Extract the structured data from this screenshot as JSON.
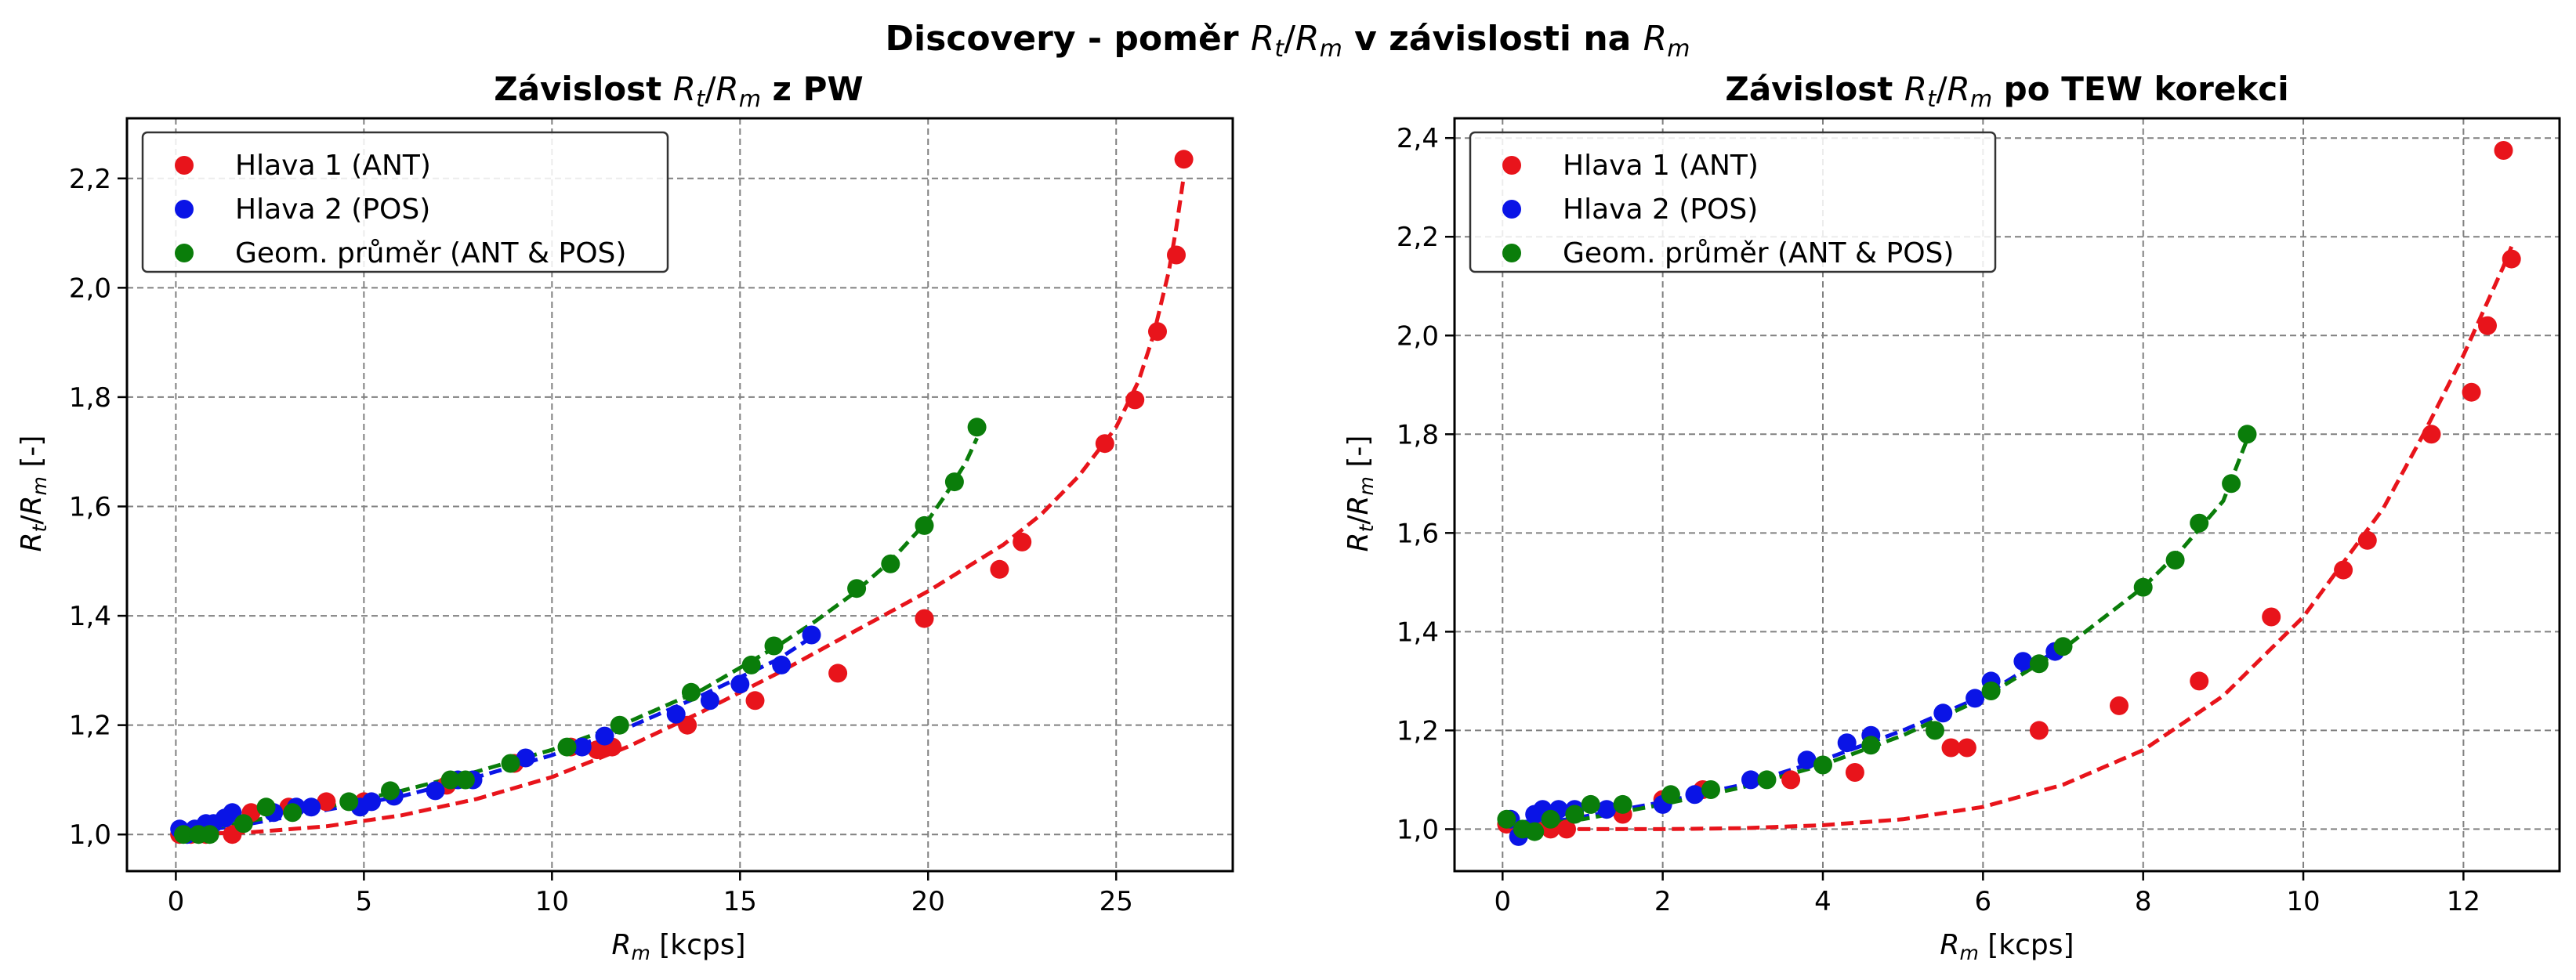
{
  "figure": {
    "suptitle_prefix": "Discovery - poměr ",
    "suptitle_middle": " v závislosti na "
  },
  "ratio_label": {
    "r": "R",
    "t": "t",
    "slash": "/",
    "m": "m"
  },
  "rm_label": {
    "r": "R",
    "m": "m"
  },
  "colors": {
    "red": "#e8141b",
    "blue": "#0a14e6",
    "green": "#0a7d0a"
  },
  "chart_data": [
    {
      "type": "scatter",
      "title_prefix": "Závislost ",
      "title_suffix": " z PW",
      "xlabel_unit": " [kcps]",
      "ylabel_unit": " [-]",
      "xlim": [
        -1.3,
        28.1
      ],
      "ylim": [
        0.933,
        2.31
      ],
      "xticks": [
        0,
        5,
        10,
        15,
        20,
        25
      ],
      "xtick_labels": [
        "0",
        "5",
        "10",
        "15",
        "20",
        "25"
      ],
      "yticks": [
        1.0,
        1.2,
        1.4,
        1.6,
        1.8,
        2.0,
        2.2
      ],
      "ytick_labels": [
        "1,0",
        "1,2",
        "1,4",
        "1,6",
        "1,8",
        "2,0",
        "2,2"
      ],
      "grid": true,
      "legend_position": "top-left",
      "series": [
        {
          "name": "Hlava 1 (ANT)",
          "color": "#e8141b",
          "points": [
            [
              0.1,
              1.0
            ],
            [
              0.4,
              1.0
            ],
            [
              0.8,
              1.0
            ],
            [
              1.5,
              1.0
            ],
            [
              2.0,
              1.04
            ],
            [
              3.0,
              1.05
            ],
            [
              4.0,
              1.06
            ],
            [
              5.0,
              1.06
            ],
            [
              7.2,
              1.09
            ],
            [
              9.0,
              1.13
            ],
            [
              10.5,
              1.16
            ],
            [
              11.2,
              1.155
            ],
            [
              11.6,
              1.16
            ],
            [
              13.6,
              1.2
            ],
            [
              15.4,
              1.245
            ],
            [
              17.6,
              1.295
            ],
            [
              19.9,
              1.395
            ],
            [
              21.9,
              1.485
            ],
            [
              22.5,
              1.535
            ],
            [
              24.7,
              1.715
            ],
            [
              25.5,
              1.795
            ],
            [
              26.1,
              1.92
            ],
            [
              26.6,
              2.06
            ],
            [
              26.8,
              2.235
            ]
          ],
          "fit": [
            [
              0,
              1.0
            ],
            [
              2,
              1.004
            ],
            [
              4,
              1.015
            ],
            [
              6,
              1.035
            ],
            [
              8,
              1.065
            ],
            [
              10,
              1.105
            ],
            [
              12,
              1.16
            ],
            [
              14,
              1.225
            ],
            [
              16,
              1.295
            ],
            [
              18,
              1.37
            ],
            [
              20,
              1.445
            ],
            [
              22,
              1.53
            ],
            [
              23,
              1.585
            ],
            [
              24,
              1.655
            ],
            [
              25,
              1.745
            ],
            [
              25.6,
              1.83
            ],
            [
              26,
              1.915
            ],
            [
              26.4,
              2.03
            ],
            [
              26.6,
              2.11
            ],
            [
              26.8,
              2.205
            ]
          ]
        },
        {
          "name": "Hlava 2 (POS)",
          "color": "#0a14e6",
          "points": [
            [
              0.1,
              1.01
            ],
            [
              0.3,
              1.0
            ],
            [
              0.5,
              1.01
            ],
            [
              0.8,
              1.02
            ],
            [
              1.0,
              1.02
            ],
            [
              1.3,
              1.03
            ],
            [
              1.5,
              1.04
            ],
            [
              2.6,
              1.04
            ],
            [
              3.2,
              1.05
            ],
            [
              3.6,
              1.05
            ],
            [
              4.9,
              1.05
            ],
            [
              5.2,
              1.06
            ],
            [
              5.8,
              1.07
            ],
            [
              6.9,
              1.08
            ],
            [
              7.5,
              1.1
            ],
            [
              7.9,
              1.1
            ],
            [
              9.3,
              1.14
            ],
            [
              10.8,
              1.16
            ],
            [
              11.4,
              1.18
            ],
            [
              13.3,
              1.22
            ],
            [
              14.2,
              1.245
            ],
            [
              15.0,
              1.275
            ],
            [
              16.1,
              1.31
            ],
            [
              16.9,
              1.365
            ]
          ],
          "fit": [
            [
              0,
              1.0
            ],
            [
              2,
              1.02
            ],
            [
              4,
              1.045
            ],
            [
              6,
              1.07
            ],
            [
              8,
              1.105
            ],
            [
              10,
              1.145
            ],
            [
              12,
              1.195
            ],
            [
              14,
              1.255
            ],
            [
              16,
              1.32
            ],
            [
              17,
              1.365
            ]
          ]
        },
        {
          "name": "Geom. průměr (ANT & POS)",
          "color": "#0a7d0a",
          "points": [
            [
              0.2,
              1.0
            ],
            [
              0.6,
              1.0
            ],
            [
              0.9,
              1.0
            ],
            [
              1.8,
              1.02
            ],
            [
              2.4,
              1.05
            ],
            [
              3.1,
              1.04
            ],
            [
              4.6,
              1.06
            ],
            [
              5.7,
              1.08
            ],
            [
              7.3,
              1.1
            ],
            [
              7.7,
              1.1
            ],
            [
              8.9,
              1.13
            ],
            [
              10.4,
              1.16
            ],
            [
              11.8,
              1.2
            ],
            [
              13.7,
              1.26
            ],
            [
              15.3,
              1.31
            ],
            [
              15.9,
              1.345
            ],
            [
              18.1,
              1.45
            ],
            [
              19.0,
              1.495
            ],
            [
              19.9,
              1.565
            ],
            [
              20.7,
              1.645
            ],
            [
              21.3,
              1.745
            ]
          ],
          "fit": [
            [
              0,
              1.0
            ],
            [
              2,
              1.025
            ],
            [
              4,
              1.05
            ],
            [
              6,
              1.08
            ],
            [
              8,
              1.115
            ],
            [
              10,
              1.155
            ],
            [
              12,
              1.205
            ],
            [
              14,
              1.265
            ],
            [
              16,
              1.345
            ],
            [
              17,
              1.39
            ],
            [
              18,
              1.44
            ],
            [
              19,
              1.5
            ],
            [
              20,
              1.575
            ],
            [
              20.5,
              1.625
            ],
            [
              21,
              1.68
            ],
            [
              21.3,
              1.725
            ]
          ]
        }
      ]
    },
    {
      "type": "scatter",
      "title_prefix": "Závislost ",
      "title_suffix": " po TEW korekci",
      "xlabel_unit": " [kcps]",
      "ylabel_unit": " [-]",
      "xlim": [
        -0.6,
        13.2
      ],
      "ylim": [
        0.915,
        2.44
      ],
      "xticks": [
        0,
        2,
        4,
        6,
        8,
        10,
        12
      ],
      "xtick_labels": [
        "0",
        "2",
        "4",
        "6",
        "8",
        "10",
        "12"
      ],
      "yticks": [
        1.0,
        1.2,
        1.4,
        1.6,
        1.8,
        2.0,
        2.2,
        2.4
      ],
      "ytick_labels": [
        "1,0",
        "1,2",
        "1,4",
        "1,6",
        "1,8",
        "2,0",
        "2,2",
        "2,4"
      ],
      "grid": true,
      "legend_position": "top-left",
      "series": [
        {
          "name": "Hlava 1 (ANT)",
          "color": "#e8141b",
          "points": [
            [
              0.05,
              1.01
            ],
            [
              0.4,
              1.0
            ],
            [
              0.6,
              1.0
            ],
            [
              0.8,
              1.0
            ],
            [
              1.5,
              1.03
            ],
            [
              2.0,
              1.06
            ],
            [
              2.5,
              1.08
            ],
            [
              3.6,
              1.1
            ],
            [
              4.4,
              1.115
            ],
            [
              5.6,
              1.165
            ],
            [
              5.8,
              1.165
            ],
            [
              6.7,
              1.2
            ],
            [
              7.7,
              1.25
            ],
            [
              8.7,
              1.3
            ],
            [
              9.6,
              1.43
            ],
            [
              10.5,
              1.525
            ],
            [
              10.8,
              1.585
            ],
            [
              11.6,
              1.8
            ],
            [
              12.1,
              1.885
            ],
            [
              12.3,
              2.02
            ],
            [
              12.5,
              2.375
            ],
            [
              12.6,
              2.155
            ]
          ],
          "fit": [
            [
              0,
              1.0
            ],
            [
              2,
              1.0
            ],
            [
              3,
              1.002
            ],
            [
              4,
              1.008
            ],
            [
              5,
              1.02
            ],
            [
              6,
              1.045
            ],
            [
              7,
              1.09
            ],
            [
              8,
              1.16
            ],
            [
              9,
              1.27
            ],
            [
              10,
              1.43
            ],
            [
              11,
              1.65
            ],
            [
              11.5,
              1.8
            ],
            [
              12,
              1.96
            ],
            [
              12.5,
              2.14
            ],
            [
              12.6,
              2.18
            ]
          ]
        },
        {
          "name": "Hlava 2 (POS)",
          "color": "#0a14e6",
          "points": [
            [
              0.1,
              1.02
            ],
            [
              0.2,
              0.985
            ],
            [
              0.3,
              1.0
            ],
            [
              0.4,
              1.03
            ],
            [
              0.5,
              1.04
            ],
            [
              0.7,
              1.04
            ],
            [
              0.9,
              1.04
            ],
            [
              1.3,
              1.04
            ],
            [
              2.0,
              1.05
            ],
            [
              2.4,
              1.07
            ],
            [
              3.1,
              1.1
            ],
            [
              3.8,
              1.14
            ],
            [
              4.3,
              1.175
            ],
            [
              4.6,
              1.19
            ],
            [
              5.5,
              1.235
            ],
            [
              5.9,
              1.265
            ],
            [
              6.1,
              1.3
            ],
            [
              6.5,
              1.34
            ],
            [
              6.9,
              1.36
            ]
          ],
          "fit": [
            [
              0,
              1.0
            ],
            [
              1,
              1.025
            ],
            [
              2,
              1.055
            ],
            [
              3,
              1.09
            ],
            [
              4,
              1.14
            ],
            [
              5,
              1.2
            ],
            [
              6,
              1.27
            ],
            [
              7,
              1.37
            ]
          ]
        },
        {
          "name": "Geom. průměr (ANT & POS)",
          "color": "#0a7d0a",
          "points": [
            [
              0.05,
              1.02
            ],
            [
              0.25,
              1.0
            ],
            [
              0.4,
              0.995
            ],
            [
              0.6,
              1.02
            ],
            [
              0.9,
              1.03
            ],
            [
              1.1,
              1.05
            ],
            [
              1.5,
              1.05
            ],
            [
              2.1,
              1.07
            ],
            [
              2.6,
              1.08
            ],
            [
              3.3,
              1.1
            ],
            [
              4.0,
              1.13
            ],
            [
              4.6,
              1.17
            ],
            [
              5.4,
              1.2
            ],
            [
              6.1,
              1.28
            ],
            [
              6.7,
              1.335
            ],
            [
              7.0,
              1.37
            ],
            [
              8.0,
              1.49
            ],
            [
              8.4,
              1.545
            ],
            [
              8.7,
              1.62
            ],
            [
              9.1,
              1.7
            ],
            [
              9.3,
              1.8
            ]
          ],
          "fit": [
            [
              0,
              1.0
            ],
            [
              1,
              1.02
            ],
            [
              2,
              1.05
            ],
            [
              3,
              1.085
            ],
            [
              4,
              1.13
            ],
            [
              5,
              1.19
            ],
            [
              6,
              1.265
            ],
            [
              7,
              1.365
            ],
            [
              8,
              1.49
            ],
            [
              8.5,
              1.57
            ],
            [
              9,
              1.665
            ],
            [
              9.3,
              1.79
            ]
          ]
        }
      ]
    }
  ]
}
